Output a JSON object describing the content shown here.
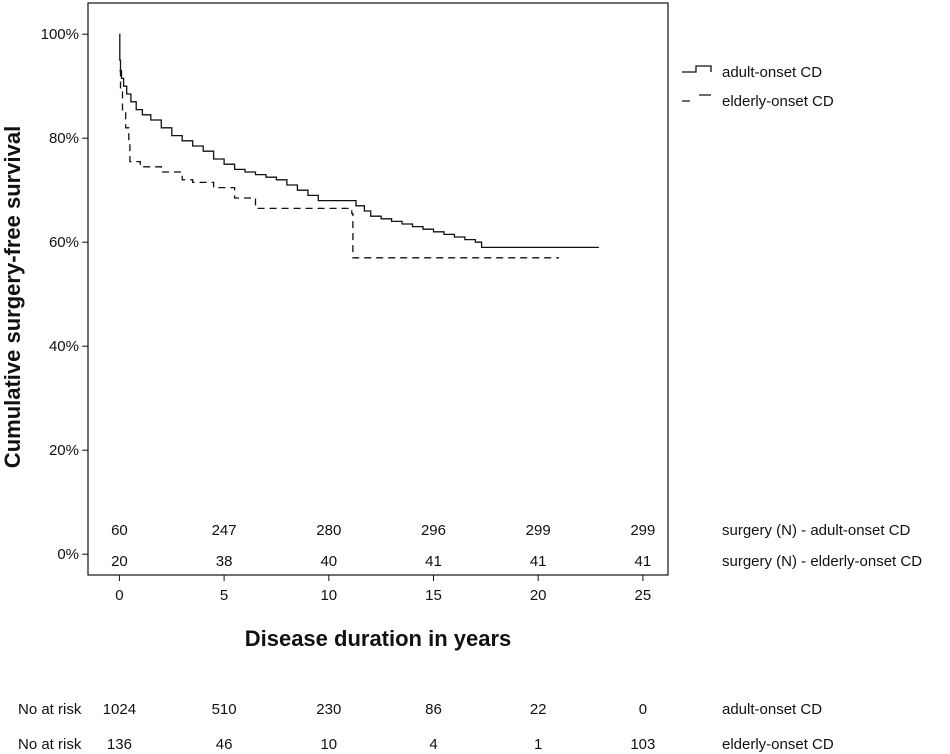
{
  "chart_data": {
    "type": "line",
    "xlabel": "Disease duration in years",
    "ylabel": "Cumulative surgery-free survival",
    "xlim": [
      -1.5,
      26.2
    ],
    "ylim": [
      -0.04,
      1.06
    ],
    "x_ticks": [
      0,
      5,
      10,
      15,
      20,
      25
    ],
    "y_ticks": [
      {
        "value": 0,
        "label": "0%"
      },
      {
        "value": 0.2,
        "label": "20%"
      },
      {
        "value": 0.4,
        "label": "40%"
      },
      {
        "value": 0.6,
        "label": "60%"
      },
      {
        "value": 0.8,
        "label": "80%"
      },
      {
        "value": 1.0,
        "label": "100%"
      }
    ],
    "legend_position": "right-top",
    "series": [
      {
        "name": "adult-onset CD",
        "style": "solid",
        "x": [
          0,
          0.02,
          0.05,
          0.1,
          0.2,
          0.35,
          0.55,
          0.8,
          1.1,
          1.5,
          2,
          2.5,
          3,
          3.5,
          4,
          4.5,
          5,
          5.5,
          6,
          6.5,
          7,
          7.5,
          8,
          8.5,
          9,
          9.5,
          10,
          10.5,
          11,
          11.3,
          11.7,
          12,
          12.5,
          13,
          13.5,
          14,
          14.5,
          15,
          15.5,
          16,
          16.5,
          17,
          17.3,
          18,
          19,
          20,
          21,
          22,
          22.9
        ],
        "y": [
          1.0,
          0.95,
          0.93,
          0.915,
          0.9,
          0.885,
          0.87,
          0.855,
          0.845,
          0.835,
          0.82,
          0.805,
          0.795,
          0.785,
          0.775,
          0.76,
          0.75,
          0.74,
          0.735,
          0.73,
          0.725,
          0.72,
          0.71,
          0.7,
          0.69,
          0.68,
          0.68,
          0.68,
          0.68,
          0.67,
          0.66,
          0.65,
          0.645,
          0.64,
          0.635,
          0.63,
          0.625,
          0.62,
          0.615,
          0.61,
          0.605,
          0.6,
          0.59,
          0.59,
          0.59,
          0.59,
          0.59,
          0.59,
          0.59
        ]
      },
      {
        "name": "elderly-onset CD",
        "style": "dashed",
        "x": [
          0,
          0.05,
          0.15,
          0.3,
          0.45,
          0.5,
          1,
          1.5,
          2,
          2.5,
          3,
          3.5,
          4,
          4.5,
          5,
          5.5,
          6,
          6.5,
          7,
          8,
          9,
          10,
          11,
          11.1,
          11.15,
          12,
          14,
          16,
          18,
          20,
          21
        ],
        "y": [
          0.93,
          0.89,
          0.85,
          0.82,
          0.79,
          0.755,
          0.745,
          0.745,
          0.735,
          0.735,
          0.72,
          0.715,
          0.715,
          0.705,
          0.705,
          0.685,
          0.685,
          0.665,
          0.665,
          0.665,
          0.665,
          0.665,
          0.665,
          0.655,
          0.57,
          0.57,
          0.57,
          0.57,
          0.57,
          0.57,
          0.57
        ]
      }
    ],
    "surgery_table": {
      "x": [
        0,
        5,
        10,
        15,
        20,
        25
      ],
      "rows": [
        {
          "label": "surgery (N) - adult-onset CD",
          "values": [
            "60",
            "247",
            "280",
            "296",
            "299",
            "299"
          ]
        },
        {
          "label": "surgery (N) - elderly-onset CD",
          "values": [
            "20",
            "38",
            "40",
            "41",
            "41",
            "41"
          ]
        }
      ]
    },
    "risk_table": {
      "prefix": "No at risk",
      "x": [
        0,
        5,
        10,
        15,
        20,
        25
      ],
      "rows": [
        {
          "label": "adult-onset CD",
          "values": [
            "1024",
            "510",
            "230",
            "86",
            "22",
            "0"
          ]
        },
        {
          "label": "elderly-onset CD",
          "values": [
            "136",
            "46",
            "10",
            "4",
            "1",
            "103"
          ]
        }
      ]
    }
  }
}
